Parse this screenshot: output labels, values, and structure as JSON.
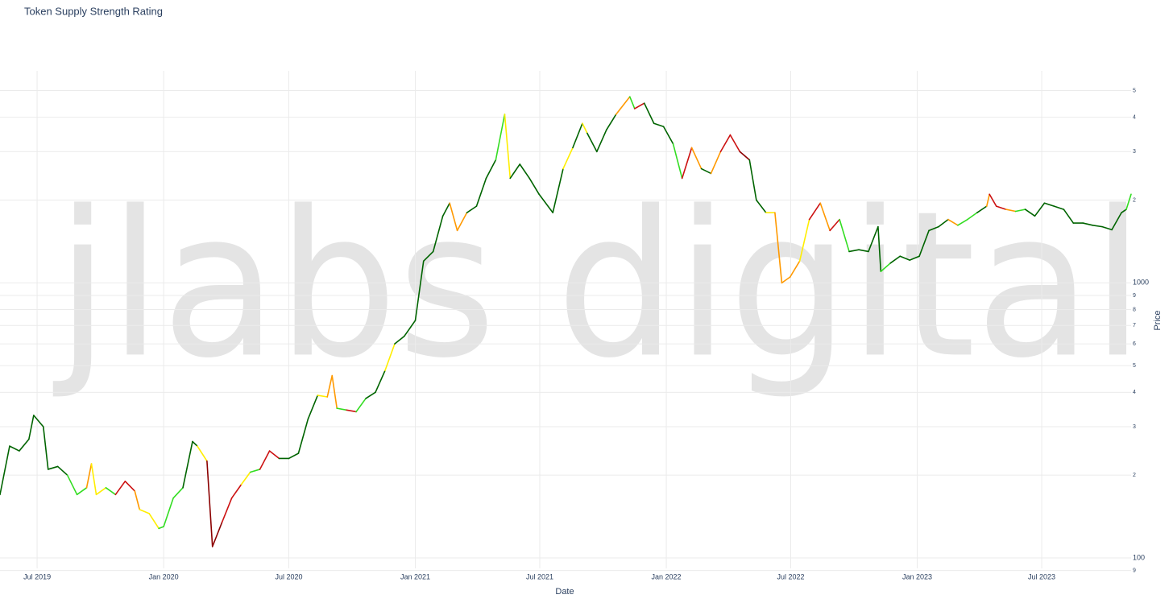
{
  "chart_data": {
    "type": "line",
    "title": "Token Supply Strength Rating",
    "watermark": "jlabs digital",
    "x_label": "Date",
    "y_label": "Price",
    "log_y": true,
    "grid": true,
    "xlim": [
      "2019-05-08",
      "2023-11-08"
    ],
    "xticks": [
      {
        "value": "2019-07-01",
        "label": "Jul 2019"
      },
      {
        "value": "2020-01-01",
        "label": "Jan 2020"
      },
      {
        "value": "2020-07-01",
        "label": "Jul 2020"
      },
      {
        "value": "2021-01-01",
        "label": "Jan 2021"
      },
      {
        "value": "2021-07-01",
        "label": "Jul 2021"
      },
      {
        "value": "2022-01-01",
        "label": "Jan 2022"
      },
      {
        "value": "2022-07-01",
        "label": "Jul 2022"
      },
      {
        "value": "2023-01-01",
        "label": "Jan 2023"
      },
      {
        "value": "2023-07-01",
        "label": "Jul 2023"
      }
    ],
    "ylim": [
      88,
      5900
    ],
    "yticks": [
      {
        "value": 90,
        "label": "9"
      },
      100,
      {
        "value": 200,
        "label": "2"
      },
      {
        "value": 300,
        "label": "3"
      },
      {
        "value": 400,
        "label": "4"
      },
      {
        "value": 500,
        "label": "5"
      },
      {
        "value": 600,
        "label": "6"
      },
      {
        "value": 700,
        "label": "7"
      },
      {
        "value": 800,
        "label": "8"
      },
      {
        "value": 900,
        "label": "9"
      },
      1000,
      {
        "value": 2000,
        "label": "2"
      },
      {
        "value": 3000,
        "label": "3"
      },
      {
        "value": 4000,
        "label": "4"
      },
      {
        "value": 5000,
        "label": "5"
      }
    ],
    "x": [
      "2019-05-08",
      "2019-05-22",
      "2019-06-05",
      "2019-06-19",
      "2019-06-26",
      "2019-07-10",
      "2019-07-17",
      "2019-07-31",
      "2019-08-14",
      "2019-08-28",
      "2019-09-11",
      "2019-09-18",
      "2019-09-25",
      "2019-10-09",
      "2019-10-23",
      "2019-11-06",
      "2019-11-20",
      "2019-11-27",
      "2019-12-11",
      "2019-12-25",
      "2020-01-01",
      "2020-01-15",
      "2020-01-29",
      "2020-02-12",
      "2020-02-19",
      "2020-03-04",
      "2020-03-12",
      "2020-03-26",
      "2020-04-09",
      "2020-04-23",
      "2020-05-06",
      "2020-05-20",
      "2020-06-03",
      "2020-06-17",
      "2020-07-01",
      "2020-07-15",
      "2020-07-29",
      "2020-08-12",
      "2020-08-26",
      "2020-09-02",
      "2020-09-09",
      "2020-09-23",
      "2020-10-07",
      "2020-10-21",
      "2020-11-04",
      "2020-11-18",
      "2020-12-02",
      "2020-12-16",
      "2021-01-01",
      "2021-01-13",
      "2021-01-27",
      "2021-02-10",
      "2021-02-20",
      "2021-03-03",
      "2021-03-17",
      "2021-03-31",
      "2021-04-14",
      "2021-04-28",
      "2021-05-11",
      "2021-05-19",
      "2021-06-02",
      "2021-06-16",
      "2021-06-30",
      "2021-07-20",
      "2021-08-04",
      "2021-08-18",
      "2021-09-01",
      "2021-09-08",
      "2021-09-22",
      "2021-10-06",
      "2021-10-20",
      "2021-11-09",
      "2021-11-16",
      "2021-11-30",
      "2021-12-14",
      "2021-12-28",
      "2022-01-11",
      "2022-01-24",
      "2022-02-07",
      "2022-02-21",
      "2022-03-07",
      "2022-03-21",
      "2022-04-04",
      "2022-04-18",
      "2022-05-02",
      "2022-05-12",
      "2022-05-26",
      "2022-06-08",
      "2022-06-18",
      "2022-06-30",
      "2022-07-14",
      "2022-07-28",
      "2022-08-13",
      "2022-08-27",
      "2022-09-10",
      "2022-09-24",
      "2022-10-08",
      "2022-10-22",
      "2022-11-05",
      "2022-11-09",
      "2022-11-23",
      "2022-12-07",
      "2022-12-21",
      "2023-01-04",
      "2023-01-18",
      "2023-02-01",
      "2023-02-15",
      "2023-03-01",
      "2023-03-15",
      "2023-03-29",
      "2023-04-12",
      "2023-04-16",
      "2023-04-26",
      "2023-05-10",
      "2023-05-24",
      "2023-06-07",
      "2023-06-21",
      "2023-07-05",
      "2023-07-19",
      "2023-08-02",
      "2023-08-16",
      "2023-08-30",
      "2023-09-13",
      "2023-09-27",
      "2023-10-11",
      "2023-10-25",
      "2023-11-01",
      "2023-11-08"
    ],
    "values": [
      170,
      255,
      245,
      270,
      330,
      300,
      210,
      215,
      200,
      170,
      180,
      220,
      170,
      180,
      170,
      190,
      175,
      150,
      145,
      128,
      130,
      165,
      180,
      265,
      255,
      225,
      110,
      135,
      165,
      185,
      205,
      210,
      245,
      230,
      230,
      240,
      320,
      390,
      385,
      460,
      350,
      345,
      340,
      380,
      400,
      480,
      600,
      640,
      730,
      1200,
      1300,
      1750,
      1950,
      1550,
      1800,
      1900,
      2400,
      2800,
      4100,
      2400,
      2700,
      2400,
      2100,
      1800,
      2600,
      3100,
      3800,
      3500,
      3000,
      3600,
      4100,
      4750,
      4300,
      4500,
      3800,
      3700,
      3200,
      2400,
      3100,
      2600,
      2500,
      3000,
      3450,
      3000,
      2800,
      2000,
      1800,
      1800,
      1000,
      1050,
      1200,
      1700,
      1950,
      1550,
      1700,
      1300,
      1320,
      1300,
      1600,
      1100,
      1180,
      1250,
      1210,
      1250,
      1550,
      1600,
      1700,
      1620,
      1700,
      1800,
      1900,
      2100,
      1900,
      1850,
      1820,
      1850,
      1750,
      1950,
      1900,
      1850,
      1650,
      1650,
      1620,
      1600,
      1560,
      1800,
      1850,
      2100
    ],
    "colors": [
      "#006400",
      "#006400",
      "#006400",
      "#006400",
      "#006400",
      "#006400",
      "#006400",
      "#006400",
      "#006400",
      "#33dd22",
      "#33dd22",
      "#ff9900",
      "#ffee00",
      "#ffee00",
      "#33dd22",
      "#cc1111",
      "#cc1111",
      "#ff9900",
      "#ffee00",
      "#ffee00",
      "#33dd22",
      "#33dd22",
      "#33dd22",
      "#006400",
      "#006400",
      "#ffee00",
      "#8b0000",
      "#8b0000",
      "#cc1111",
      "#cc1111",
      "#ffee00",
      "#33dd22",
      "#cc1111",
      "#cc1111",
      "#006400",
      "#006400",
      "#006400",
      "#006400",
      "#ffee00",
      "#ff9900",
      "#ff9900",
      "#33dd22",
      "#cc1111",
      "#33dd22",
      "#006400",
      "#006400",
      "#ffee00",
      "#006400",
      "#006400",
      "#006400",
      "#006400",
      "#006400",
      "#006400",
      "#ff9900",
      "#ff9900",
      "#006400",
      "#006400",
      "#006400",
      "#33dd22",
      "#ffee00",
      "#006400",
      "#006400",
      "#006400",
      "#006400",
      "#006400",
      "#ffee00",
      "#006400",
      "#ffee00",
      "#006400",
      "#006400",
      "#006400",
      "#ff9900",
      "#33dd22",
      "#cc1111",
      "#006400",
      "#006400",
      "#006400",
      "#33dd22",
      "#cc1111",
      "#ff9900",
      "#006400",
      "#ff9900",
      "#cc1111",
      "#cc1111",
      "#8b0000",
      "#006400",
      "#006400",
      "#ffee00",
      "#ff9900",
      "#ff9900",
      "#ff9900",
      "#ffee00",
      "#cc1111",
      "#ff9900",
      "#cc1111",
      "#33dd22",
      "#006400",
      "#006400",
      "#006400",
      "#006400",
      "#33dd22",
      "#006400",
      "#006400",
      "#006400",
      "#006400",
      "#006400",
      "#006400",
      "#ff9900",
      "#33dd22",
      "#33dd22",
      "#006400",
      "#ff9900",
      "#cc1111",
      "#cc1111",
      "#ff9900",
      "#33dd22",
      "#006400",
      "#006400",
      "#006400",
      "#006400",
      "#006400",
      "#006400",
      "#006400",
      "#006400",
      "#006400",
      "#006400",
      "#006400",
      "#33dd22"
    ]
  }
}
